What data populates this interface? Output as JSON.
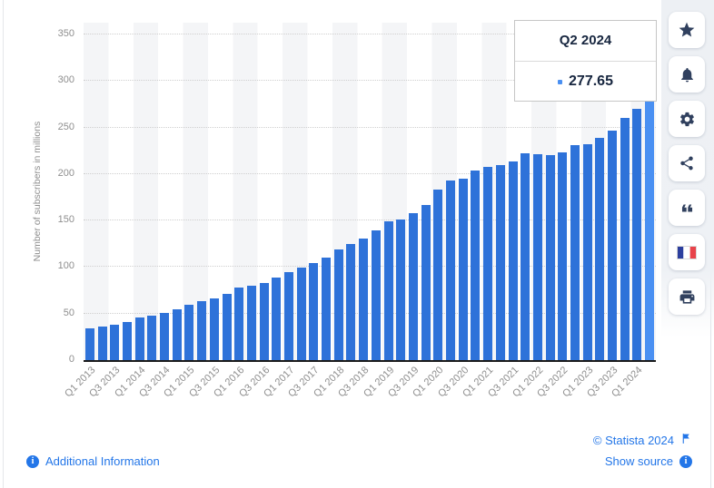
{
  "chart_data": {
    "type": "bar",
    "title": "",
    "xlabel": "",
    "ylabel": "Number of subscribers in millions",
    "ylim": [
      0,
      350
    ],
    "y_ticks": [
      0,
      50,
      100,
      150,
      200,
      250,
      300,
      350
    ],
    "grid": "horizontal-dotted",
    "x_labels_every": 2,
    "legend_position": "none",
    "categories": [
      "Q1 2013",
      "Q2 2013",
      "Q3 2013",
      "Q4 2013",
      "Q1 2014",
      "Q2 2014",
      "Q3 2014",
      "Q4 2014",
      "Q1 2015",
      "Q2 2015",
      "Q3 2015",
      "Q4 2015",
      "Q1 2016",
      "Q2 2016",
      "Q3 2016",
      "Q4 2016",
      "Q1 2017",
      "Q2 2017",
      "Q3 2017",
      "Q4 2017",
      "Q1 2018",
      "Q2 2018",
      "Q3 2018",
      "Q4 2018",
      "Q1 2019",
      "Q2 2019",
      "Q3 2019",
      "Q4 2019",
      "Q1 2020",
      "Q2 2020",
      "Q3 2020",
      "Q4 2020",
      "Q1 2021",
      "Q2 2021",
      "Q3 2021",
      "Q4 2021",
      "Q1 2022",
      "Q2 2022",
      "Q3 2022",
      "Q4 2022",
      "Q1 2023",
      "Q2 2023",
      "Q3 2023",
      "Q4 2023",
      "Q1 2024",
      "Q2 2024"
    ],
    "values": [
      34.24,
      35.64,
      38.01,
      41.43,
      46.13,
      47.99,
      50.65,
      54.48,
      59.62,
      63.01,
      66.02,
      70.84,
      77.71,
      79.9,
      83.28,
      89.09,
      94.36,
      99.04,
      104.02,
      110.64,
      118.9,
      124.35,
      130.42,
      139.26,
      148.86,
      151.56,
      158.33,
      167.09,
      182.86,
      192.95,
      195.15,
      203.66,
      207.64,
      209.18,
      213.56,
      221.84,
      221.64,
      220.67,
      223.09,
      230.75,
      232.5,
      238.39,
      247.15,
      260.28,
      269.6,
      277.65
    ],
    "highlight_index": 45
  },
  "tooltip": {
    "title": "Q2 2024",
    "value": "277.65"
  },
  "toolbar": {
    "icons": [
      "star-icon",
      "bell-icon",
      "gear-icon",
      "share-icon",
      "quote-icon",
      "french-flag-icon",
      "printer-icon"
    ]
  },
  "footer": {
    "additional_information": "Additional Information",
    "copyright": "© Statista 2024",
    "show_source": "Show source"
  },
  "colors": {
    "bar": "#2E72D9",
    "bar_highlight": "#4A90F2",
    "link": "#2376E8",
    "icon": "#30405E",
    "axis": "#1A1A1A",
    "grid": "#CFCFCF",
    "muted_text": "#8E8E8E",
    "stripe": "#F4F5F7",
    "flag_blue": "#2C3F9E",
    "flag_red": "#E8434A"
  }
}
